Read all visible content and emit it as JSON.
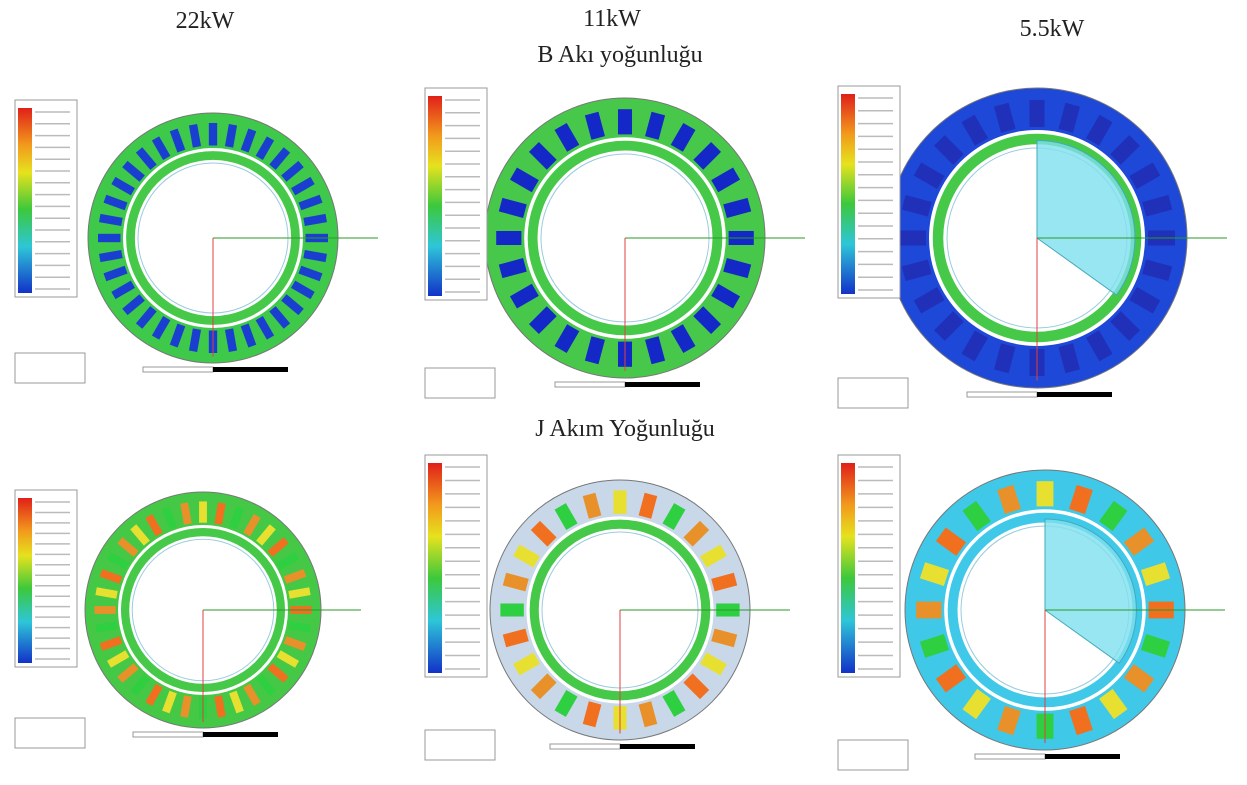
{
  "header": {
    "columns": [
      "22kW",
      "11kW",
      "5.5kW"
    ]
  },
  "rows": [
    {
      "label": "B Akı yoğunluğu"
    },
    {
      "label": "J Akım Yoğunluğu"
    }
  ]
}
